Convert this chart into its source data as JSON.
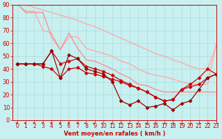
{
  "background_color": "#c8f0f0",
  "grid_color": "#b0dede",
  "line_color_dark": "#cc0000",
  "line_color_light": "#ffaaaa",
  "xlabel": "Vent moyen/en rafales ( km/h )",
  "xlim": [
    -0.5,
    23
  ],
  "ylim": [
    0,
    90
  ],
  "xticks": [
    0,
    1,
    2,
    3,
    4,
    5,
    6,
    7,
    8,
    9,
    10,
    11,
    12,
    13,
    14,
    15,
    16,
    17,
    18,
    19,
    20,
    21,
    22,
    23
  ],
  "yticks": [
    0,
    10,
    20,
    30,
    40,
    50,
    60,
    70,
    80,
    90
  ],
  "series": [
    {
      "color": "#ffaaaa",
      "lw": 1.0,
      "x": [
        0,
        1,
        2,
        3,
        4,
        5,
        6,
        7,
        8,
        9,
        10,
        11,
        12,
        13,
        14,
        15,
        16,
        17,
        18,
        19,
        20,
        21,
        22,
        23
      ],
      "y": [
        91,
        90,
        88,
        86,
        84,
        82,
        80,
        78,
        75,
        73,
        70,
        67,
        64,
        61,
        58,
        55,
        52,
        50,
        47,
        45,
        42,
        40,
        40,
        58
      ]
    },
    {
      "color": "#ffaaaa",
      "lw": 1.0,
      "x": [
        0,
        1,
        2,
        3,
        4,
        5,
        6,
        7,
        8,
        9,
        10,
        11,
        12,
        13,
        14,
        15,
        16,
        17,
        18,
        19,
        20,
        21,
        22,
        23
      ],
      "y": [
        91,
        85,
        85,
        70,
        68,
        55,
        65,
        65,
        56,
        54,
        52,
        50,
        46,
        44,
        40,
        37,
        35,
        34,
        32,
        30,
        28,
        28,
        28,
        60
      ]
    },
    {
      "color": "#ff8888",
      "lw": 0.9,
      "x": [
        0,
        1,
        2,
        3,
        4,
        5,
        6,
        7,
        8,
        9,
        10,
        11,
        12,
        13,
        14,
        15,
        16,
        17,
        18,
        19,
        20,
        21,
        22,
        23
      ],
      "y": [
        91,
        84,
        84,
        84,
        65,
        55,
        68,
        56,
        47,
        46,
        43,
        40,
        36,
        33,
        28,
        27,
        24,
        22,
        22,
        22,
        22,
        22,
        22,
        22
      ]
    },
    {
      "color": "#cc0000",
      "lw": 0.9,
      "marker": "D",
      "ms": 2.5,
      "x": [
        0,
        1,
        2,
        3,
        4,
        5,
        6,
        7,
        8,
        9,
        10,
        11,
        12,
        13,
        14,
        15,
        16,
        17,
        18,
        19,
        20,
        21,
        22,
        23
      ],
      "y": [
        44,
        44,
        44,
        42,
        40,
        33,
        40,
        41,
        37,
        36,
        34,
        32,
        30,
        27,
        25,
        22,
        18,
        15,
        16,
        24,
        26,
        28,
        33,
        36
      ]
    },
    {
      "color": "#cc0000",
      "lw": 0.9,
      "marker": "D",
      "ms": 2.5,
      "x": [
        0,
        1,
        2,
        3,
        4,
        5,
        6,
        7,
        8,
        9,
        10,
        11,
        12,
        13,
        14,
        15,
        16,
        17,
        18,
        19,
        20,
        21,
        22,
        23
      ],
      "y": [
        44,
        44,
        44,
        44,
        54,
        44,
        46,
        48,
        42,
        40,
        38,
        35,
        31,
        28,
        25,
        22,
        18,
        15,
        16,
        24,
        28,
        33,
        40,
        36
      ]
    },
    {
      "color": "#990000",
      "lw": 0.9,
      "marker": "D",
      "ms": 2.5,
      "x": [
        0,
        1,
        2,
        3,
        4,
        5,
        6,
        7,
        8,
        9,
        10,
        11,
        12,
        13,
        14,
        15,
        16,
        17,
        18,
        19,
        20,
        21,
        22,
        23
      ],
      "y": [
        44,
        44,
        44,
        44,
        54,
        33,
        51,
        48,
        40,
        38,
        36,
        30,
        15,
        12,
        15,
        10,
        11,
        13,
        8,
        13,
        15,
        24,
        33,
        36
      ]
    }
  ],
  "arrow_angles": [
    225,
    225,
    225,
    225,
    225,
    225,
    225,
    225,
    270,
    270,
    270,
    315,
    0,
    315,
    315,
    0,
    0,
    45,
    45,
    45,
    45,
    90,
    90,
    90
  ]
}
